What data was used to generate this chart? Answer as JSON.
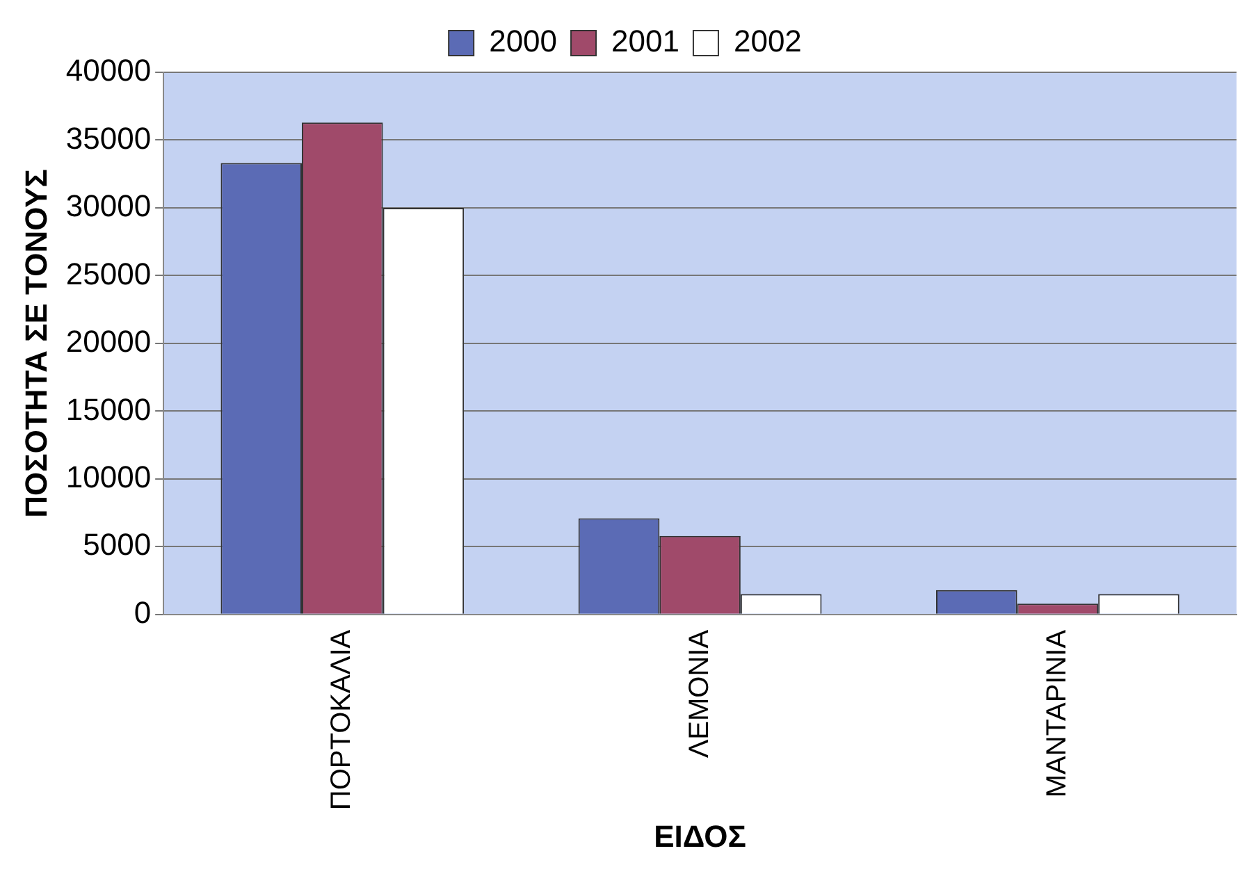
{
  "chart_data": {
    "type": "bar",
    "xlabel": "ΕΙΔΟΣ",
    "ylabel": "ΠΟΣΟΤΗΤΑ ΣΕ ΤΟΝΟΥΣ",
    "categories": [
      "ΠΟΡΤΟΚΑΛΙΑ",
      "ΛΕΜΟΝΙΑ",
      "ΜΑΝΤΑΡΙΝΙΑ"
    ],
    "series": [
      {
        "name": "2000",
        "color": "#5b6bb5",
        "values": [
          33300,
          7100,
          1800
        ]
      },
      {
        "name": "2001",
        "color": "#a04a6a",
        "values": [
          36300,
          5800,
          800
        ]
      },
      {
        "name": "2002",
        "color": "#ffffff",
        "values": [
          30000,
          1500,
          1500
        ]
      }
    ],
    "ylim": [
      0,
      40000
    ],
    "yticks": [
      0,
      5000,
      10000,
      15000,
      20000,
      25000,
      30000,
      35000,
      40000
    ],
    "grid": "y",
    "legend": "top"
  }
}
